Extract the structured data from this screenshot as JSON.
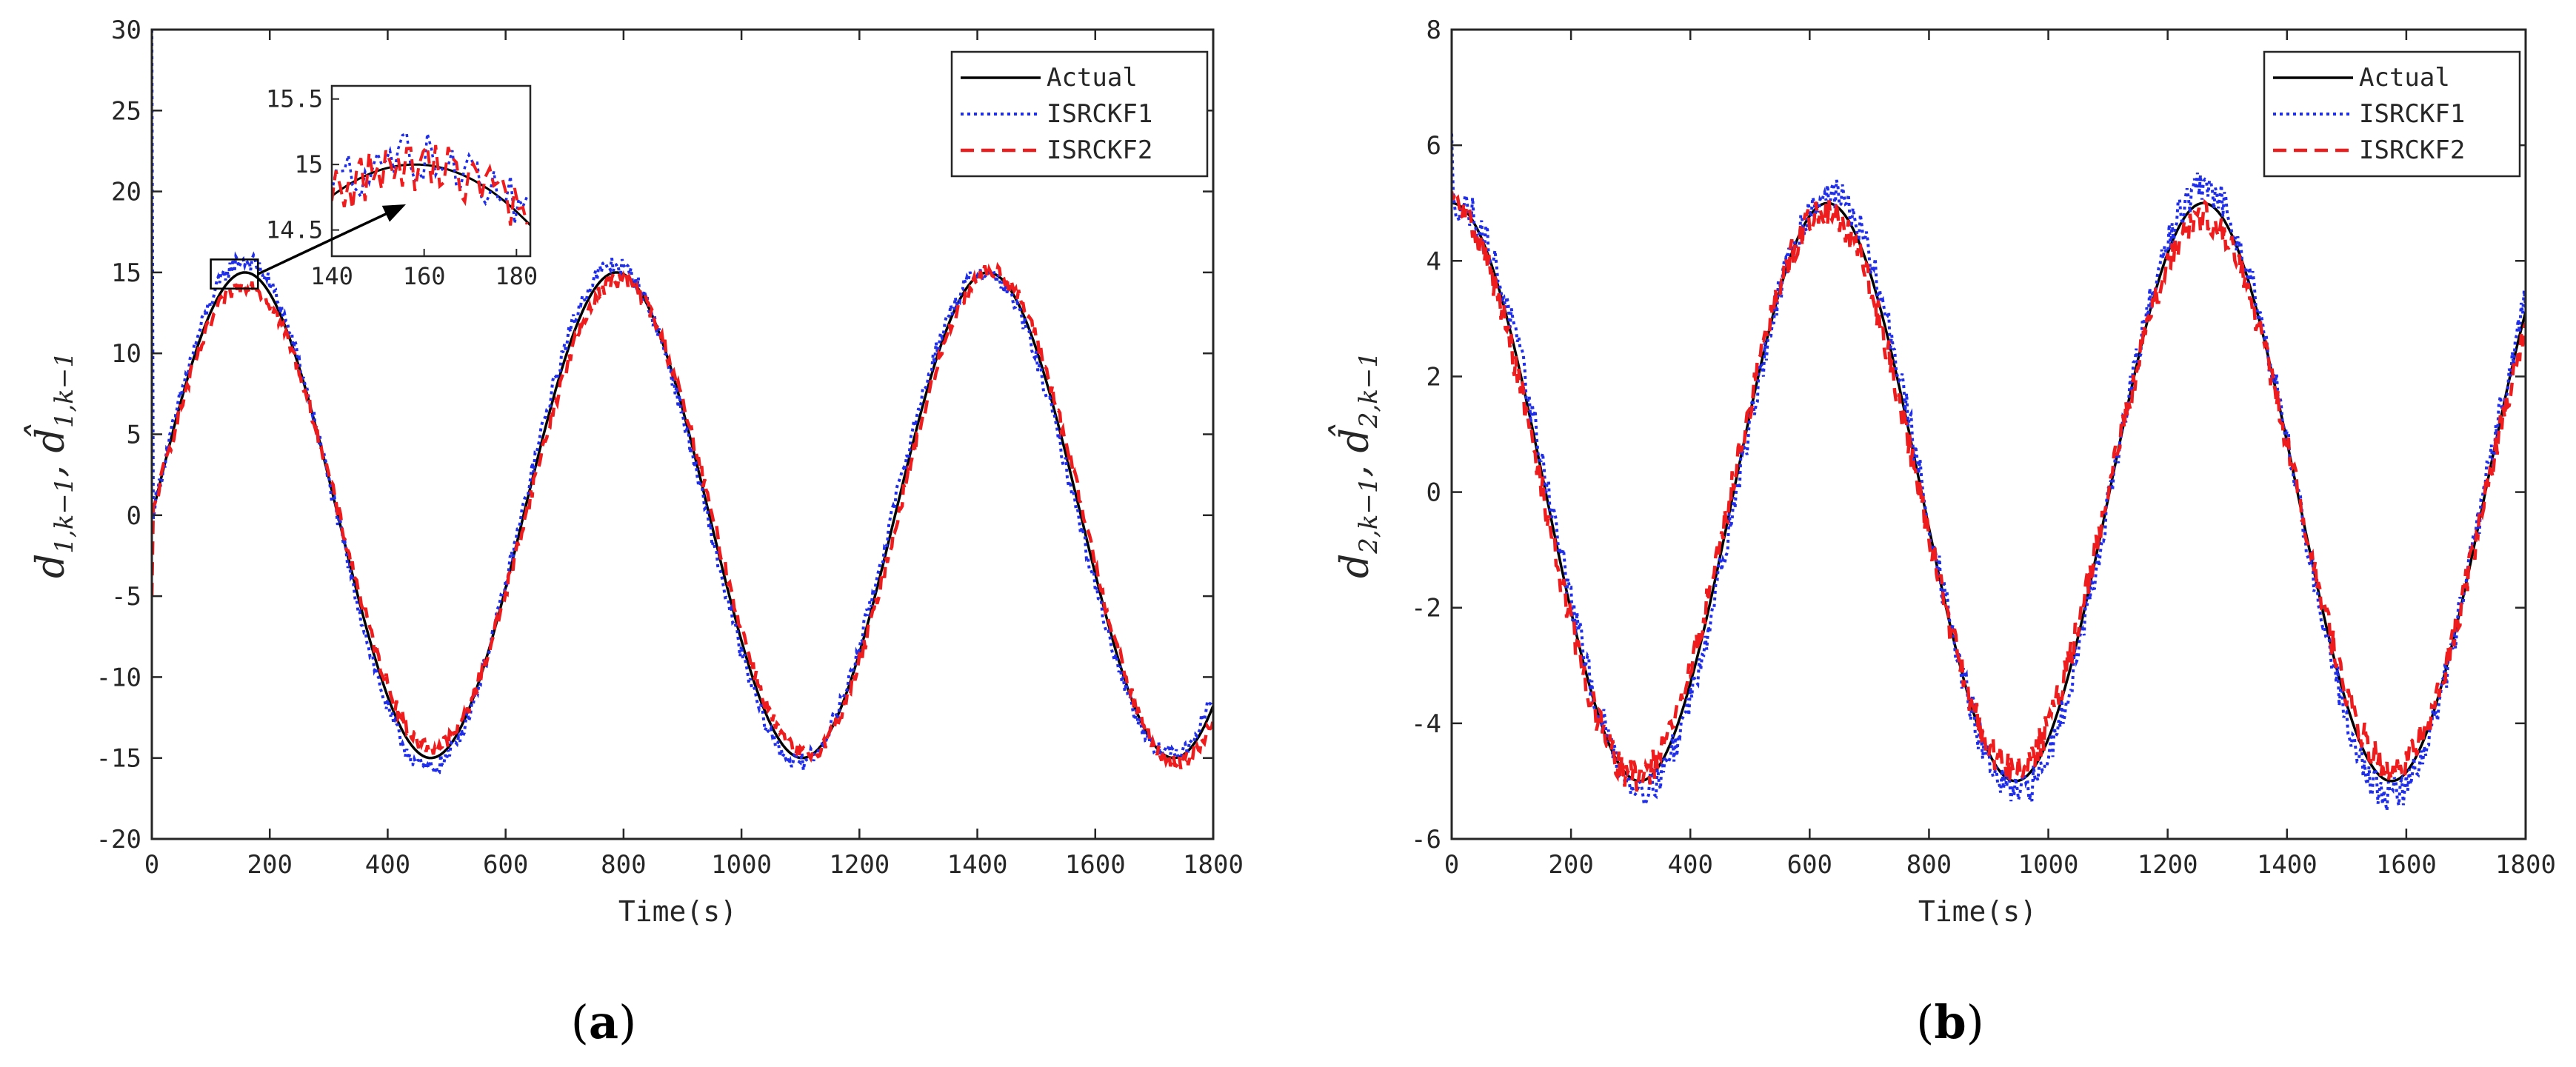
{
  "colors": {
    "actual": "#000000",
    "isrckf1": "#1f2ee8",
    "isrckf2": "#ee1c1c"
  },
  "chart_data": [
    {
      "panel": "(a)",
      "type": "line",
      "xlabel": "Time(s)",
      "ylabel": "d_{1,k-1}, d̂_{1,k-1}",
      "xlim": [
        0,
        1800
      ],
      "ylim": [
        -20,
        30
      ],
      "xticks": [
        0,
        200,
        400,
        600,
        800,
        1000,
        1200,
        1400,
        1600,
        1800
      ],
      "yticks": [
        -20,
        -15,
        -10,
        -5,
        0,
        5,
        10,
        15,
        20,
        25,
        30
      ],
      "legend": [
        "Actual",
        "ISRCKF1",
        "ISRCKF2"
      ],
      "legend_position": "top-right",
      "signal": {
        "amplitude": 15,
        "period": 630,
        "start_value": 0,
        "peak_time": 158
      },
      "series": [
        {
          "name": "Actual",
          "style": "solid",
          "noise": 0
        },
        {
          "name": "ISRCKF1",
          "style": "dotted",
          "noise": 0.5,
          "initial_spike": 30
        },
        {
          "name": "ISRCKF2",
          "style": "dashed",
          "noise": 0.45,
          "initial_value": -5
        }
      ],
      "inset": {
        "xlim": [
          140,
          183
        ],
        "ylim": [
          14.3,
          15.6
        ],
        "xticks": [
          140,
          160,
          180
        ],
        "yticks": [
          14.5,
          15,
          15.5
        ],
        "ytick_labels": [
          "14.5",
          "15",
          "15.5"
        ],
        "zoom_box": {
          "x": [
            100,
            180
          ],
          "y": [
            14,
            15.8
          ]
        }
      }
    },
    {
      "panel": "(b)",
      "type": "line",
      "xlabel": "Time(s)",
      "ylabel": "d_{2,k-1}, d̂_{2,k-1}",
      "xlim": [
        0,
        1800
      ],
      "ylim": [
        -6,
        8
      ],
      "xticks": [
        0,
        200,
        400,
        600,
        800,
        1000,
        1200,
        1400,
        1600,
        1800
      ],
      "yticks": [
        -6,
        -4,
        -2,
        0,
        2,
        4,
        6,
        8
      ],
      "legend": [
        "Actual",
        "ISRCKF1",
        "ISRCKF2"
      ],
      "legend_position": "top-right",
      "signal": {
        "amplitude": 5,
        "period": 630,
        "start_value": 5,
        "peak_time": 0
      },
      "series": [
        {
          "name": "Actual",
          "style": "solid",
          "noise": 0
        },
        {
          "name": "ISRCKF1",
          "style": "dotted",
          "noise": 0.28,
          "initial_spike": 6.2
        },
        {
          "name": "ISRCKF2",
          "style": "dashed",
          "noise": 0.25,
          "initial_value": 5.2
        }
      ]
    }
  ],
  "labels": {
    "a": {
      "open": "(",
      "letter": "a",
      "close": ")"
    },
    "b": {
      "open": "(",
      "letter": "b",
      "close": ")"
    },
    "ylabel_a": {
      "main": "d",
      "sub": "1,k−1",
      "sep": ", ",
      "hat": "d̂",
      "hatsub": "1,k−1"
    },
    "ylabel_b": {
      "main": "d",
      "sub": "2,k−1",
      "sep": ", ",
      "hat": "d̂",
      "hatsub": "2,k−1"
    }
  }
}
